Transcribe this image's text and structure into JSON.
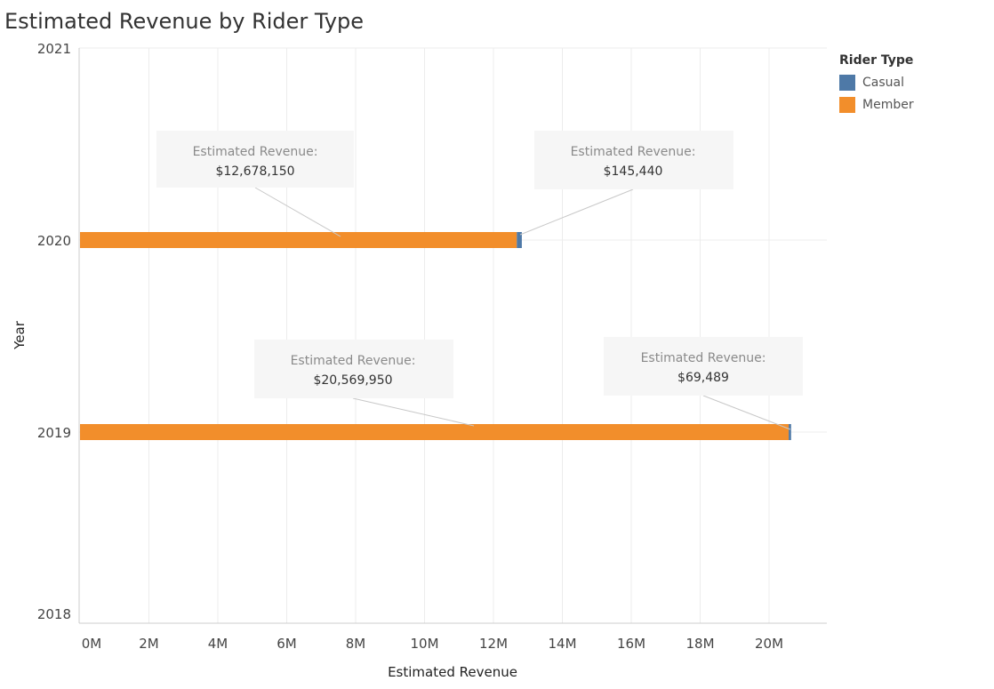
{
  "chart_data": {
    "type": "bar",
    "orientation": "horizontal",
    "stacked": true,
    "title": "Estimated Revenue by Rider Type",
    "xlabel": "Estimated Revenue",
    "ylabel": "Year",
    "categories": [
      "2018",
      "2019",
      "2020",
      "2021"
    ],
    "xlim": [
      0,
      21500000
    ],
    "xticks": [
      0,
      2000000,
      4000000,
      6000000,
      8000000,
      10000000,
      12000000,
      14000000,
      16000000,
      18000000,
      20000000
    ],
    "xtick_labels": [
      "0M",
      "2M",
      "4M",
      "6M",
      "8M",
      "10M",
      "12M",
      "14M",
      "16M",
      "18M",
      "20M"
    ],
    "legend_title": "Rider Type",
    "legend_position": "right",
    "grid": true,
    "series": [
      {
        "name": "Member",
        "color": "#F28E2B",
        "values": [
          null,
          20569950,
          12678150,
          null
        ]
      },
      {
        "name": "Casual",
        "color": "#4E79A7",
        "values": [
          null,
          69489,
          145440,
          null
        ]
      }
    ],
    "annotations": [
      {
        "heading": "Estimated Revenue:",
        "value": "$12,678,150",
        "year": "2020",
        "series": "Member"
      },
      {
        "heading": "Estimated Revenue:",
        "value": "$145,440",
        "year": "2020",
        "series": "Casual"
      },
      {
        "heading": "Estimated Revenue:",
        "value": "$20,569,950",
        "year": "2019",
        "series": "Member"
      },
      {
        "heading": "Estimated Revenue:",
        "value": "$69,489",
        "year": "2019",
        "series": "Casual"
      }
    ]
  }
}
